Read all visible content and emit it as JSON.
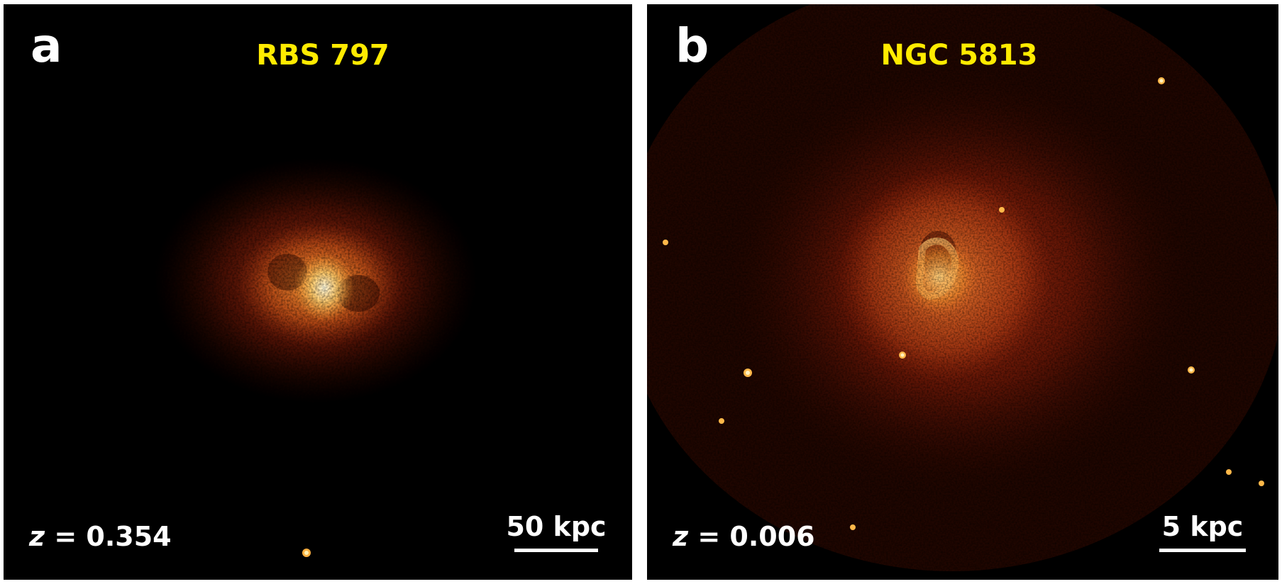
{
  "panels": [
    {
      "letter": "a",
      "title": "RBS 797",
      "redshift_var": "z",
      "redshift_text": " = 0.354",
      "scale_label": "50 kpc"
    },
    {
      "letter": "b",
      "title": "NGC 5813",
      "redshift_var": "z",
      "redshift_text": " = 0.006",
      "scale_label": "5 kpc"
    }
  ],
  "colors": {
    "background": "#000000",
    "title": "#ffeb00",
    "label": "#ffffff",
    "glow_core": "#fff6c8",
    "glow_mid": "#ff9a2e",
    "glow_outer": "#a1260c"
  }
}
